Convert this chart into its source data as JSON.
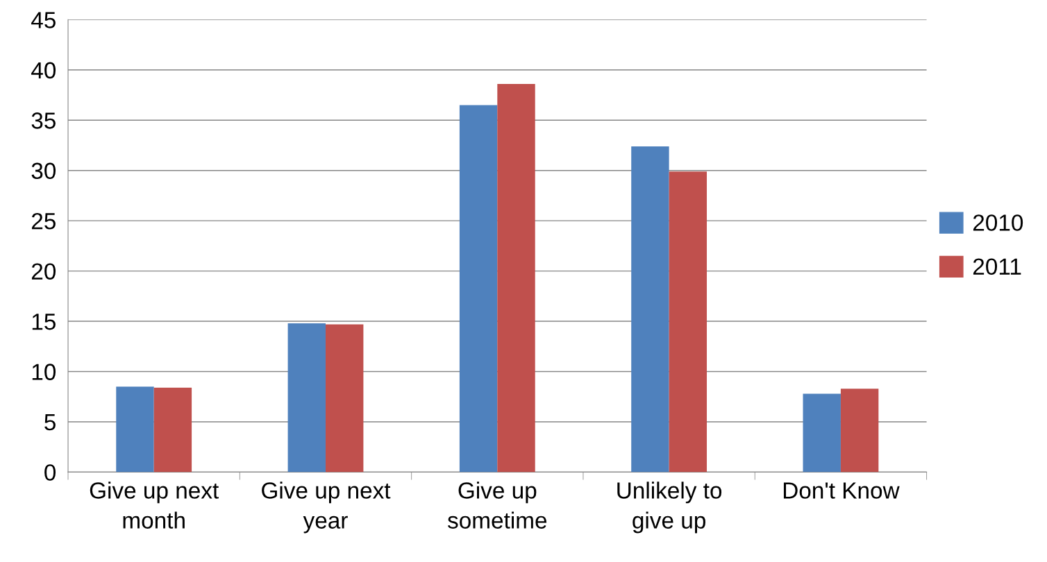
{
  "chart_data": {
    "type": "bar",
    "categories": [
      "Give up next month",
      "Give up next year",
      "Give up sometime",
      "Unlikely to give up",
      "Don't Know"
    ],
    "series": [
      {
        "name": "2010",
        "color": "#4f81bd",
        "values": [
          8.5,
          14.8,
          36.5,
          32.4,
          7.8
        ]
      },
      {
        "name": "2011",
        "color": "#c0504d",
        "values": [
          8.4,
          14.7,
          38.6,
          29.9,
          8.3
        ]
      }
    ],
    "ylim": [
      0,
      45
    ],
    "yticks": [
      0,
      5,
      10,
      15,
      20,
      25,
      30,
      35,
      40,
      45
    ],
    "grid": "y",
    "legend": "right"
  }
}
